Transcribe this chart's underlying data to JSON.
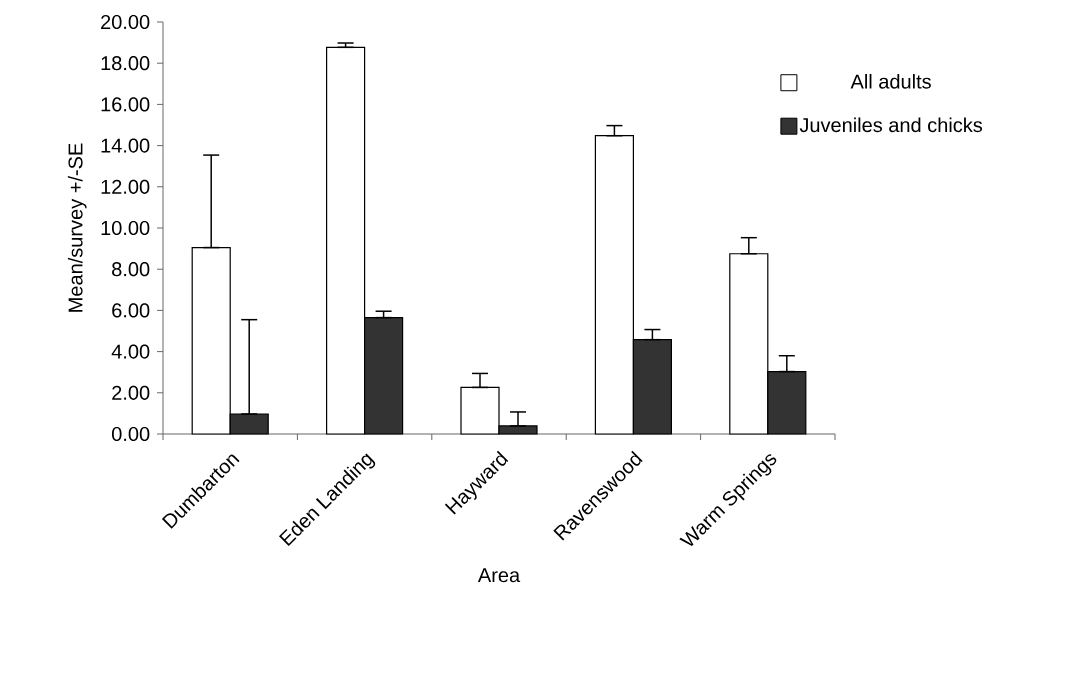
{
  "chart_data": {
    "type": "bar",
    "xlabel": "Area",
    "ylabel": "Mean/survey +/-SE",
    "categories": [
      "Dumbarton",
      "Eden Landing",
      "Hayward",
      "Ravenswood",
      "Warm Springs"
    ],
    "series": [
      {
        "name": "All adults",
        "color": "#ffffff",
        "values": [
          9.05,
          18.77,
          2.26,
          14.48,
          8.75
        ],
        "errors": [
          [
            9.05,
            13.54
          ],
          [
            18.77,
            18.98
          ],
          [
            2.26,
            2.94
          ],
          [
            14.48,
            14.97
          ],
          [
            8.75,
            9.53
          ]
        ]
      },
      {
        "name": "Juveniles and chicks",
        "color": "#333333",
        "values": [
          0.97,
          5.65,
          0.39,
          4.58,
          3.03
        ],
        "errors": [
          [
            0.97,
            5.55
          ],
          [
            5.65,
            5.96
          ],
          [
            0.39,
            1.07
          ],
          [
            4.58,
            5.07
          ],
          [
            3.03,
            3.8
          ]
        ]
      }
    ],
    "ylim": [
      0,
      20
    ],
    "yticks": [
      {
        "value": 0,
        "label": "0.00"
      },
      {
        "value": 2,
        "label": "2.00"
      },
      {
        "value": 4,
        "label": "4.00"
      },
      {
        "value": 6,
        "label": "6.00"
      },
      {
        "value": 8,
        "label": "8.00"
      },
      {
        "value": 10,
        "label": "10.00"
      },
      {
        "value": 12,
        "label": "12.00"
      },
      {
        "value": 14,
        "label": "14.00"
      },
      {
        "value": 16,
        "label": "16.00"
      },
      {
        "value": 18,
        "label": "18.00"
      },
      {
        "value": 20,
        "label": "20.00"
      }
    ],
    "grid": false,
    "legend": "top right"
  }
}
